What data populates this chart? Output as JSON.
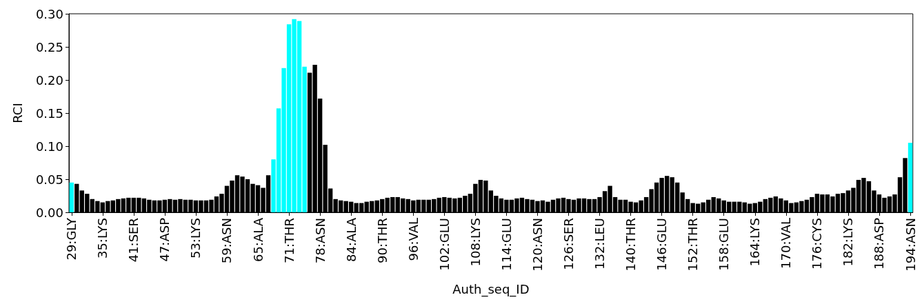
{
  "chart_data": {
    "type": "bar",
    "xlabel": "Auth_seq_ID",
    "ylabel": "RCI",
    "categories": [
      "29:GLY",
      null,
      null,
      null,
      null,
      null,
      "35:LYS",
      null,
      null,
      null,
      null,
      null,
      "41:SER",
      null,
      null,
      null,
      null,
      null,
      "47:ASP",
      null,
      null,
      null,
      null,
      null,
      "53:LYS",
      null,
      null,
      null,
      null,
      null,
      "59:ASN",
      null,
      null,
      null,
      null,
      null,
      "65:ALA",
      null,
      null,
      null,
      null,
      null,
      "71:THR",
      null,
      null,
      null,
      null,
      null,
      "78:ASN",
      null,
      null,
      null,
      null,
      null,
      "84:ALA",
      null,
      null,
      null,
      null,
      null,
      "90:THR",
      null,
      null,
      null,
      null,
      null,
      "96:VAL",
      null,
      null,
      null,
      null,
      null,
      "102:GLU",
      null,
      null,
      null,
      null,
      null,
      "108:LYS",
      null,
      null,
      null,
      null,
      null,
      "114:GLU",
      null,
      null,
      null,
      null,
      null,
      "120:ASN",
      null,
      null,
      null,
      null,
      null,
      "126:SER",
      null,
      null,
      null,
      null,
      null,
      "132:LEU",
      null,
      null,
      null,
      null,
      null,
      "140:THR",
      null,
      null,
      null,
      null,
      null,
      "146:GLU",
      null,
      null,
      null,
      null,
      null,
      "152:THR",
      null,
      null,
      null,
      null,
      null,
      "158:GLU",
      null,
      null,
      null,
      null,
      null,
      "164:LYS",
      null,
      null,
      null,
      null,
      null,
      "170:VAL",
      null,
      null,
      null,
      null,
      null,
      "176:CYS",
      null,
      null,
      null,
      null,
      null,
      "182:LYS",
      null,
      null,
      null,
      null,
      null,
      "188:ASP",
      null,
      null,
      null,
      null,
      null,
      "194:ASN"
    ],
    "values": [
      0.045,
      0.043,
      0.033,
      0.028,
      0.02,
      0.017,
      0.015,
      0.017,
      0.018,
      0.02,
      0.021,
      0.022,
      0.022,
      0.022,
      0.021,
      0.019,
      0.018,
      0.018,
      0.019,
      0.02,
      0.019,
      0.02,
      0.019,
      0.019,
      0.018,
      0.018,
      0.018,
      0.019,
      0.024,
      0.028,
      0.04,
      0.048,
      0.056,
      0.054,
      0.05,
      0.043,
      0.041,
      0.037,
      0.056,
      0.08,
      0.157,
      0.218,
      0.284,
      0.292,
      0.289,
      0.22,
      0.211,
      0.223,
      0.172,
      0.102,
      0.036,
      0.02,
      0.018,
      0.017,
      0.016,
      0.014,
      0.014,
      0.016,
      0.017,
      0.018,
      0.02,
      0.022,
      0.023,
      0.023,
      0.021,
      0.02,
      0.018,
      0.019,
      0.019,
      0.019,
      0.02,
      0.022,
      0.023,
      0.022,
      0.021,
      0.022,
      0.025,
      0.028,
      0.043,
      0.049,
      0.048,
      0.033,
      0.025,
      0.021,
      0.019,
      0.019,
      0.021,
      0.022,
      0.02,
      0.019,
      0.017,
      0.018,
      0.016,
      0.019,
      0.021,
      0.022,
      0.02,
      0.019,
      0.021,
      0.021,
      0.02,
      0.02,
      0.023,
      0.032,
      0.04,
      0.023,
      0.019,
      0.019,
      0.016,
      0.015,
      0.018,
      0.023,
      0.035,
      0.045,
      0.052,
      0.055,
      0.053,
      0.045,
      0.03,
      0.02,
      0.014,
      0.013,
      0.015,
      0.019,
      0.023,
      0.021,
      0.018,
      0.016,
      0.016,
      0.016,
      0.015,
      0.013,
      0.014,
      0.016,
      0.02,
      0.022,
      0.024,
      0.021,
      0.018,
      0.014,
      0.015,
      0.017,
      0.019,
      0.023,
      0.028,
      0.027,
      0.027,
      0.024,
      0.028,
      0.029,
      0.033,
      0.037,
      0.049,
      0.052,
      0.047,
      0.033,
      0.027,
      0.022,
      0.024,
      0.027,
      0.053,
      0.082,
      0.105
    ],
    "colors": [
      "#00ffff",
      "#000000",
      "#000000",
      "#000000",
      "#000000",
      "#000000",
      "#000000",
      "#000000",
      "#000000",
      "#000000",
      "#000000",
      "#000000",
      "#000000",
      "#000000",
      "#000000",
      "#000000",
      "#000000",
      "#000000",
      "#000000",
      "#000000",
      "#000000",
      "#000000",
      "#000000",
      "#000000",
      "#000000",
      "#000000",
      "#000000",
      "#000000",
      "#000000",
      "#000000",
      "#000000",
      "#000000",
      "#000000",
      "#000000",
      "#000000",
      "#000000",
      "#000000",
      "#000000",
      "#000000",
      "#00ffff",
      "#00ffff",
      "#00ffff",
      "#00ffff",
      "#00ffff",
      "#00ffff",
      "#00ffff",
      "#000000",
      "#000000",
      "#000000",
      "#000000",
      "#000000",
      "#000000",
      "#000000",
      "#000000",
      "#000000",
      "#000000",
      "#000000",
      "#000000",
      "#000000",
      "#000000",
      "#000000",
      "#000000",
      "#000000",
      "#000000",
      "#000000",
      "#000000",
      "#000000",
      "#000000",
      "#000000",
      "#000000",
      "#000000",
      "#000000",
      "#000000",
      "#000000",
      "#000000",
      "#000000",
      "#000000",
      "#000000",
      "#000000",
      "#000000",
      "#000000",
      "#000000",
      "#000000",
      "#000000",
      "#000000",
      "#000000",
      "#000000",
      "#000000",
      "#000000",
      "#000000",
      "#000000",
      "#000000",
      "#000000",
      "#000000",
      "#000000",
      "#000000",
      "#000000",
      "#000000",
      "#000000",
      "#000000",
      "#000000",
      "#000000",
      "#000000",
      "#000000",
      "#000000",
      "#000000",
      "#000000",
      "#000000",
      "#000000",
      "#000000",
      "#000000",
      "#000000",
      "#000000",
      "#000000",
      "#000000",
      "#000000",
      "#000000",
      "#000000",
      "#000000",
      "#000000",
      "#000000",
      "#000000",
      "#000000",
      "#000000",
      "#000000",
      "#000000",
      "#000000",
      "#000000",
      "#000000",
      "#000000",
      "#000000",
      "#000000",
      "#000000",
      "#000000",
      "#000000",
      "#000000",
      "#000000",
      "#000000",
      "#000000",
      "#000000",
      "#000000",
      "#000000",
      "#000000",
      "#000000",
      "#000000",
      "#000000",
      "#000000",
      "#000000",
      "#000000",
      "#000000",
      "#000000",
      "#000000",
      "#000000",
      "#000000",
      "#000000",
      "#000000",
      "#000000",
      "#000000",
      "#000000",
      "#000000",
      "#000000",
      "#000000",
      "#00ffff"
    ],
    "ylim": [
      0,
      0.3
    ],
    "yticks": [
      {
        "value": 0,
        "label": "0.00"
      },
      {
        "value": 0.05,
        "label": "0.05"
      },
      {
        "value": 0.1,
        "label": "0.10"
      },
      {
        "value": 0.15,
        "label": "0.15"
      },
      {
        "value": 0.2,
        "label": "0.20"
      },
      {
        "value": 0.25,
        "label": "0.25"
      },
      {
        "value": 0.3,
        "label": "0.30"
      }
    ],
    "grid": false
  }
}
